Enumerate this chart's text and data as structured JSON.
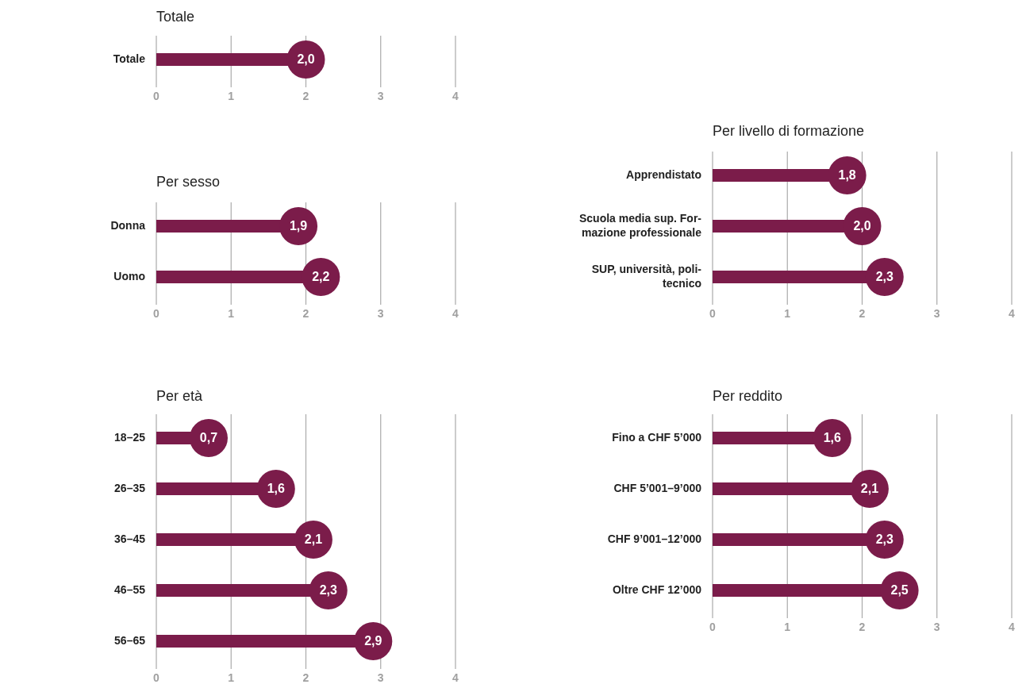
{
  "chart_data": [
    {
      "type": "lollipop",
      "title": "Totale",
      "orientation": "horizontal",
      "categories": [
        "Totale"
      ],
      "values": [
        2.0
      ],
      "value_labels": [
        "2,0"
      ],
      "color": "#7b1c4a",
      "xlim": [
        0,
        4
      ],
      "xticks": [
        0,
        1,
        2,
        3,
        4
      ],
      "grid": "x"
    },
    {
      "type": "lollipop",
      "title": "Per sesso",
      "orientation": "horizontal",
      "categories": [
        "Donna",
        "Uomo"
      ],
      "values": [
        1.9,
        2.2
      ],
      "value_labels": [
        "1,9",
        "2,2"
      ],
      "color": "#7b1c4a",
      "xlim": [
        0,
        4
      ],
      "xticks": [
        0,
        1,
        2,
        3,
        4
      ],
      "grid": "x"
    },
    {
      "type": "lollipop",
      "title": "Per livello di formazione",
      "orientation": "horizontal",
      "categories": [
        "Apprendistato",
        "Scuola media sup. For-\nmazione professionale",
        "SUP, università, poli-\ntecnico"
      ],
      "values": [
        1.8,
        2.0,
        2.3
      ],
      "value_labels": [
        "1,8",
        "2,0",
        "2,3"
      ],
      "color": "#7b1c4a",
      "xlim": [
        0,
        4
      ],
      "xticks": [
        0,
        1,
        2,
        3,
        4
      ],
      "grid": "x"
    },
    {
      "type": "lollipop",
      "title": "Per età",
      "orientation": "horizontal",
      "categories": [
        "18–25",
        "26–35",
        "36–45",
        "46–55",
        "56–65"
      ],
      "values": [
        0.7,
        1.6,
        2.1,
        2.3,
        2.9
      ],
      "value_labels": [
        "0,7",
        "1,6",
        "2,1",
        "2,3",
        "2,9"
      ],
      "color": "#7b1c4a",
      "xlim": [
        0,
        4
      ],
      "xticks": [
        0,
        1,
        2,
        3,
        4
      ],
      "grid": "x"
    },
    {
      "type": "lollipop",
      "title": "Per reddito",
      "orientation": "horizontal",
      "categories": [
        "Fino a CHF 5’000",
        "CHF 5’001–9’000",
        "CHF 9’001–12’000",
        "Oltre CHF 12’000"
      ],
      "values": [
        1.6,
        2.1,
        2.3,
        2.5
      ],
      "value_labels": [
        "1,6",
        "2,1",
        "2,3",
        "2,5"
      ],
      "color": "#7b1c4a",
      "xlim": [
        0,
        4
      ],
      "xticks": [
        0,
        1,
        2,
        3,
        4
      ],
      "grid": "x"
    }
  ]
}
